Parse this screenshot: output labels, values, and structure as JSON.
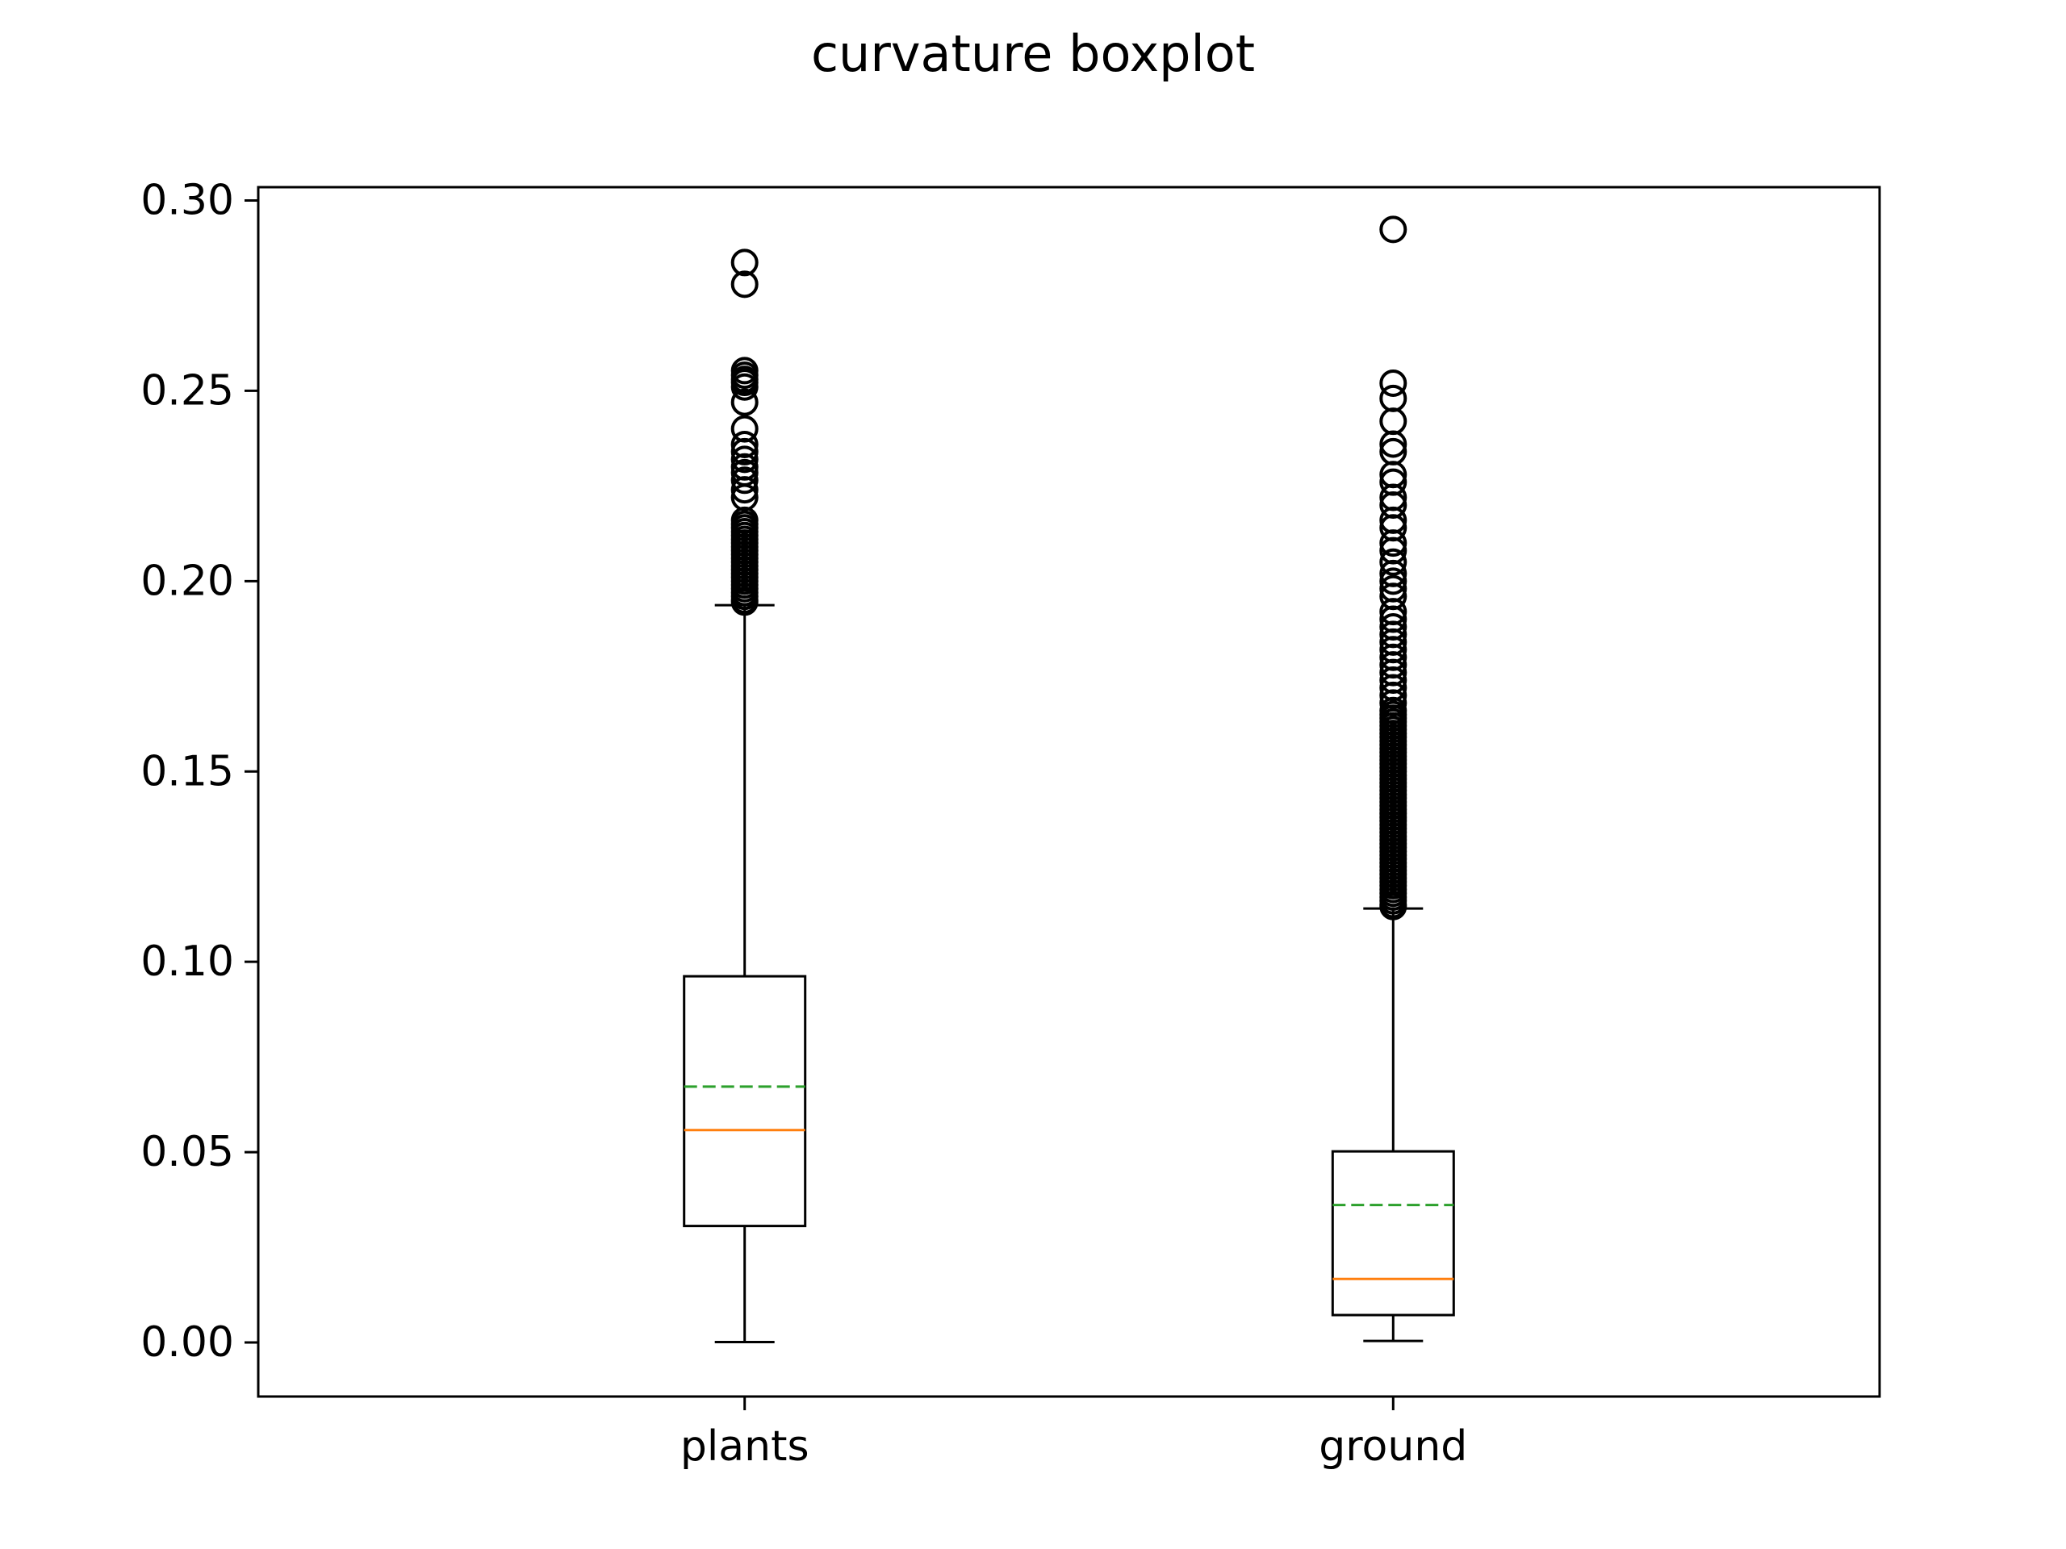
{
  "chart_data": {
    "type": "boxplot",
    "title": "curvature boxplot",
    "xlabel": "",
    "ylabel": "",
    "ylim": [
      -0.0142,
      0.3035
    ],
    "yticks": [
      "0.00",
      "0.05",
      "0.10",
      "0.15",
      "0.20",
      "0.25",
      "0.30"
    ],
    "categories": [
      "plants",
      "ground"
    ],
    "boxes": [
      {
        "category": "plants",
        "whisker_low": 0.0001,
        "q1": 0.0306,
        "median": 0.0558,
        "mean": 0.0672,
        "q3": 0.0962,
        "whisker_high": 0.1937,
        "outliers": [
          0.2837,
          0.278,
          0.2553,
          0.2541,
          0.253,
          0.2522,
          0.251,
          0.247,
          0.24,
          0.2359,
          0.234,
          0.232,
          0.23,
          0.2285,
          0.2265,
          0.224,
          0.222,
          0.216,
          0.215,
          0.214,
          0.213,
          0.212,
          0.211,
          0.21,
          0.209,
          0.208,
          0.207,
          0.206,
          0.205,
          0.204,
          0.203,
          0.202,
          0.201,
          0.2,
          0.199,
          0.198,
          0.197,
          0.196,
          0.195,
          0.1945
        ]
      },
      {
        "category": "ground",
        "whisker_low": 0.0004,
        "q1": 0.0072,
        "median": 0.0167,
        "mean": 0.0361,
        "q3": 0.0502,
        "whisker_high": 0.114,
        "outliers": [
          0.2924,
          0.252,
          0.248,
          0.242,
          0.236,
          0.234,
          0.228,
          0.226,
          0.222,
          0.22,
          0.216,
          0.214,
          0.21,
          0.208,
          0.205,
          0.202,
          0.2,
          0.198,
          0.196,
          0.192,
          0.19,
          0.188,
          0.186,
          0.184,
          0.182,
          0.18,
          0.178,
          0.176,
          0.174,
          0.172,
          0.17,
          0.168,
          0.166,
          0.165,
          0.164,
          0.163,
          0.162,
          0.161,
          0.16,
          0.159,
          0.158,
          0.157,
          0.156,
          0.155,
          0.154,
          0.153,
          0.152,
          0.151,
          0.15,
          0.149,
          0.148,
          0.147,
          0.146,
          0.145,
          0.144,
          0.143,
          0.142,
          0.141,
          0.14,
          0.139,
          0.138,
          0.137,
          0.136,
          0.135,
          0.134,
          0.133,
          0.132,
          0.131,
          0.13,
          0.129,
          0.128,
          0.127,
          0.126,
          0.125,
          0.124,
          0.123,
          0.122,
          0.121,
          0.12,
          0.119,
          0.118,
          0.117,
          0.116,
          0.115,
          0.1145
        ]
      }
    ],
    "grid": false,
    "legend": "none",
    "colors": {
      "box": "#000000",
      "median": "#ff7f0e",
      "mean": "#2ca02c",
      "outlier": "#000000",
      "background": "#ffffff"
    }
  }
}
